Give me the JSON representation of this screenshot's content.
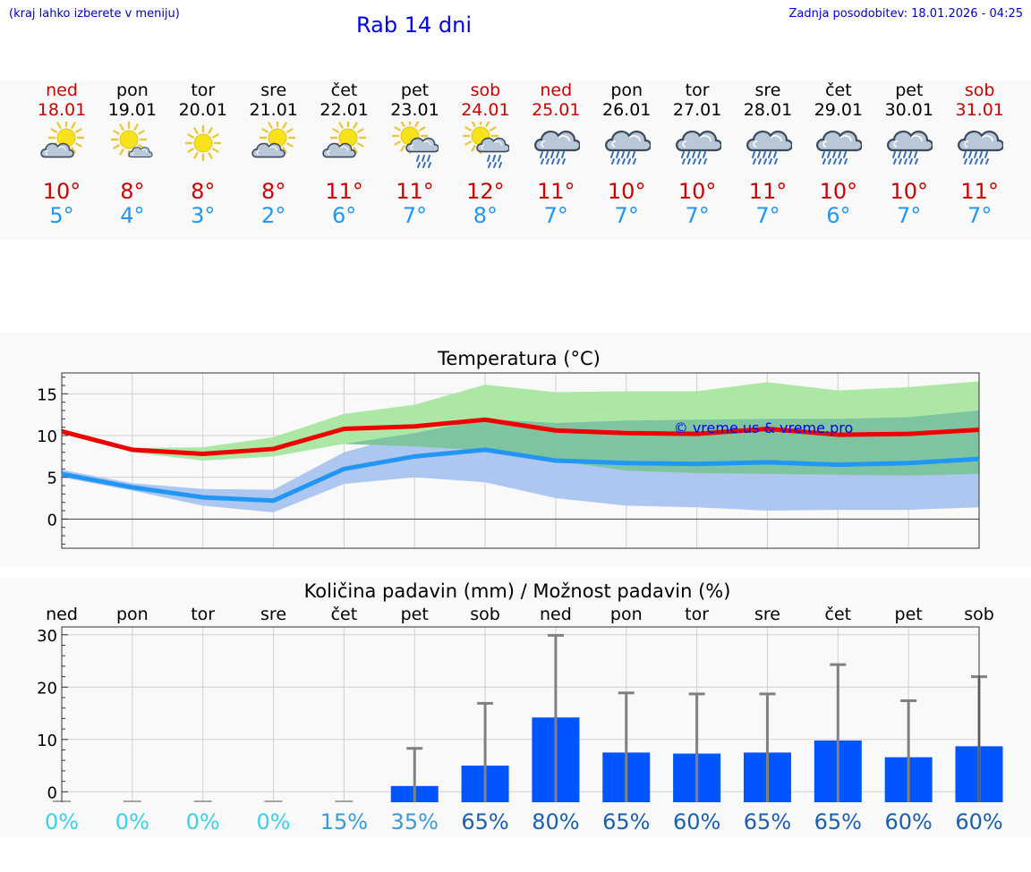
{
  "header": {
    "location_hint": "(kraj lahko izberete v meniju)",
    "title": "Rab 14 dni",
    "updated": "Zadnja posodobitev: 18.01.2026 - 04:25"
  },
  "days": [
    {
      "name": "ned",
      "date": "18.01",
      "weekend": true,
      "icon": "sun-cloud-icon",
      "tmax": "10°",
      "tmin": "5°"
    },
    {
      "name": "pon",
      "date": "19.01",
      "weekend": false,
      "icon": "sun-small-cloud-icon",
      "tmax": "8°",
      "tmin": "4°"
    },
    {
      "name": "tor",
      "date": "20.01",
      "weekend": false,
      "icon": "sun-icon",
      "tmax": "8°",
      "tmin": "3°"
    },
    {
      "name": "sre",
      "date": "21.01",
      "weekend": false,
      "icon": "sun-cloud-icon",
      "tmax": "8°",
      "tmin": "2°"
    },
    {
      "name": "čet",
      "date": "22.01",
      "weekend": false,
      "icon": "sun-cloud-icon",
      "tmax": "11°",
      "tmin": "6°"
    },
    {
      "name": "pet",
      "date": "23.01",
      "weekend": false,
      "icon": "sun-rain-cloud-icon",
      "tmax": "11°",
      "tmin": "7°"
    },
    {
      "name": "sob",
      "date": "24.01",
      "weekend": true,
      "icon": "sun-rain-cloud-icon",
      "tmax": "12°",
      "tmin": "8°"
    },
    {
      "name": "ned",
      "date": "25.01",
      "weekend": true,
      "icon": "rain-cloud-icon",
      "tmax": "11°",
      "tmin": "7°"
    },
    {
      "name": "pon",
      "date": "26.01",
      "weekend": false,
      "icon": "rain-cloud-icon",
      "tmax": "10°",
      "tmin": "7°"
    },
    {
      "name": "tor",
      "date": "27.01",
      "weekend": false,
      "icon": "rain-cloud-icon",
      "tmax": "10°",
      "tmin": "7°"
    },
    {
      "name": "sre",
      "date": "28.01",
      "weekend": false,
      "icon": "rain-cloud-icon",
      "tmax": "11°",
      "tmin": "7°"
    },
    {
      "name": "čet",
      "date": "29.01",
      "weekend": false,
      "icon": "rain-cloud-icon",
      "tmax": "10°",
      "tmin": "6°"
    },
    {
      "name": "pet",
      "date": "30.01",
      "weekend": false,
      "icon": "rain-cloud-icon",
      "tmax": "10°",
      "tmin": "7°"
    },
    {
      "name": "sob",
      "date": "31.01",
      "weekend": true,
      "icon": "rain-cloud-icon",
      "tmax": "11°",
      "tmin": "7°"
    }
  ],
  "colors": {
    "weekend": "#cc0000",
    "tmax_text": "#cc0000",
    "tmin_text": "#2196f3",
    "tmax_line": "#ee0000",
    "tmin_line": "#2196f3",
    "tmax_band": "#a8e6a0",
    "tmin_band": "#aac4f0",
    "overlap_band": "#7cc2a0",
    "precip_bar": "#0055ff",
    "error_bar": "#808080",
    "watermark": "#0000ee"
  },
  "chart_data": [
    {
      "type": "line",
      "title": "Temperatura (°C)",
      "watermark": "© vreme.us & vreme.pro",
      "x": [
        0,
        1,
        2,
        3,
        4,
        5,
        6,
        7,
        8,
        9,
        10,
        11,
        12,
        13
      ],
      "ylim": [
        -3.5,
        17.5
      ],
      "yticks": [
        0,
        5,
        10,
        15
      ],
      "ytick_labels": [
        "0",
        "5",
        "10",
        "15"
      ],
      "series": [
        {
          "name": "max",
          "values": [
            10.5,
            8.3,
            7.8,
            8.4,
            10.8,
            11.1,
            11.9,
            10.6,
            10.3,
            10.2,
            10.8,
            10.1,
            10.2,
            10.7
          ]
        },
        {
          "name": "min",
          "values": [
            5.4,
            3.8,
            2.6,
            2.2,
            6.0,
            7.5,
            8.3,
            7.0,
            6.7,
            6.6,
            6.8,
            6.5,
            6.7,
            7.2
          ]
        }
      ],
      "bands": [
        {
          "name": "max_range",
          "upper": [
            10.8,
            8.5,
            8.6,
            9.8,
            12.6,
            13.7,
            16.1,
            15.2,
            15.3,
            15.3,
            16.4,
            15.4,
            15.8,
            16.5
          ],
          "lower": [
            10.2,
            8.0,
            7.0,
            7.5,
            9.0,
            8.7,
            8.2,
            7.0,
            5.8,
            5.5,
            5.4,
            5.3,
            5.2,
            5.4
          ]
        },
        {
          "name": "min_range",
          "upper": [
            5.9,
            4.3,
            3.6,
            3.5,
            8.0,
            10.3,
            12.0,
            11.5,
            11.8,
            11.9,
            12.0,
            12.0,
            12.2,
            13.0
          ],
          "lower": [
            5.0,
            3.4,
            1.6,
            0.8,
            4.2,
            5.0,
            4.4,
            2.5,
            1.6,
            1.4,
            1.0,
            1.1,
            1.1,
            1.4
          ]
        }
      ]
    },
    {
      "type": "bar",
      "title": "Količina padavin (mm) / Možnost padavin (%)",
      "categories": [
        "ned",
        "pon",
        "tor",
        "sre",
        "čet",
        "pet",
        "sob",
        "ned",
        "pon",
        "tor",
        "sre",
        "čet",
        "pet",
        "sob"
      ],
      "values": [
        0,
        0,
        0,
        0,
        0,
        1.1,
        5.0,
        14.2,
        7.5,
        7.3,
        7.5,
        9.8,
        6.6,
        8.7
      ],
      "error_max": [
        0,
        0,
        0,
        0,
        0,
        8.3,
        16.9,
        29.9,
        18.9,
        18.7,
        18.7,
        24.3,
        17.4,
        22.0
      ],
      "probability": [
        "0%",
        "0%",
        "0%",
        "0%",
        "15%",
        "35%",
        "65%",
        "80%",
        "65%",
        "60%",
        "65%",
        "65%",
        "60%",
        "60%"
      ],
      "probability_values": [
        0,
        0,
        0,
        0,
        15,
        35,
        65,
        80,
        65,
        60,
        65,
        65,
        60,
        60
      ],
      "ylim": [
        -2,
        31.5
      ],
      "yticks": [
        0,
        10,
        20,
        30
      ],
      "ytick_labels": [
        "0",
        "10",
        "20",
        "30"
      ]
    }
  ]
}
